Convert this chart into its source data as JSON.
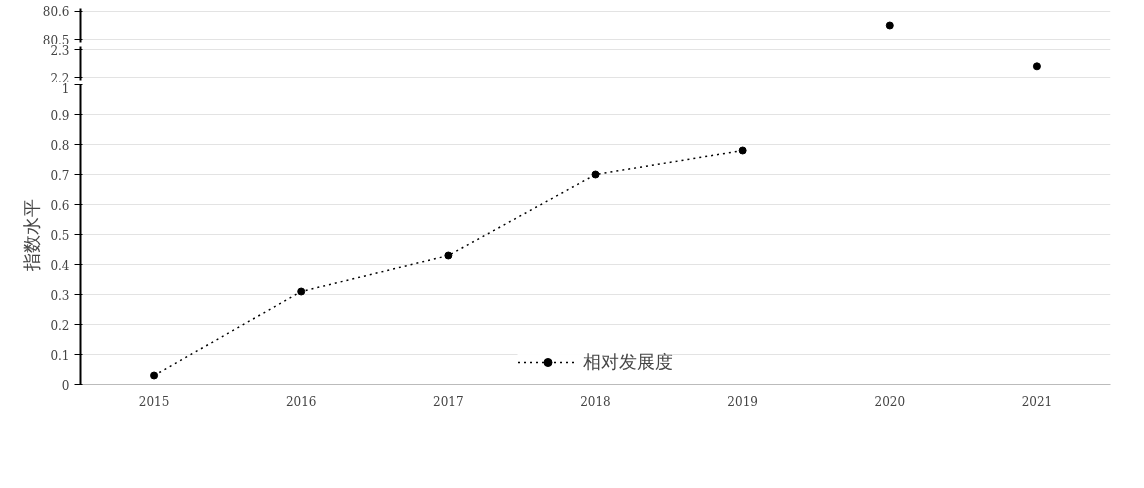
{
  "chart_data": [
    {
      "type": "line",
      "categories": [
        "2015",
        "2016",
        "2017",
        "2018",
        "2019",
        "2020",
        "2021"
      ],
      "ylim": [
        80.49,
        80.61
      ],
      "yticks": [
        80.5,
        80.6
      ],
      "grid": "y",
      "tick_labels": "y",
      "marker": "circle",
      "line_style": "dotted",
      "series": [
        {
          "color": "#000000",
          "values": [
            null,
            null,
            null,
            null,
            null,
            80.55,
            null
          ]
        }
      ]
    },
    {
      "type": "line",
      "categories": [
        "2015",
        "2016",
        "2017",
        "2018",
        "2019",
        "2020",
        "2021"
      ],
      "ylim": [
        2.19,
        2.31
      ],
      "yticks": [
        2.2,
        2.3
      ],
      "grid": "y",
      "tick_labels": "y",
      "marker": "circle",
      "line_style": "dotted",
      "series": [
        {
          "color": "#000000",
          "values": [
            null,
            null,
            null,
            null,
            null,
            null,
            2.24
          ]
        }
      ]
    },
    {
      "type": "line",
      "categories": [
        "2015",
        "2016",
        "2017",
        "2018",
        "2019",
        "2020",
        "2021"
      ],
      "ylim": [
        0,
        1
      ],
      "yticks": [
        0,
        0.1,
        0.2,
        0.3,
        0.4,
        0.5,
        0.6,
        0.7,
        0.8,
        0.9,
        1
      ],
      "grid": "y",
      "ylabel": "指数水平",
      "marker": "circle",
      "line_style": "dotted",
      "legend": "bottom",
      "series": [
        {
          "name": "相对发展度",
          "color": "#000000",
          "values": [
            0.03,
            0.31,
            0.43,
            0.7,
            0.78,
            null,
            null
          ]
        }
      ]
    }
  ]
}
